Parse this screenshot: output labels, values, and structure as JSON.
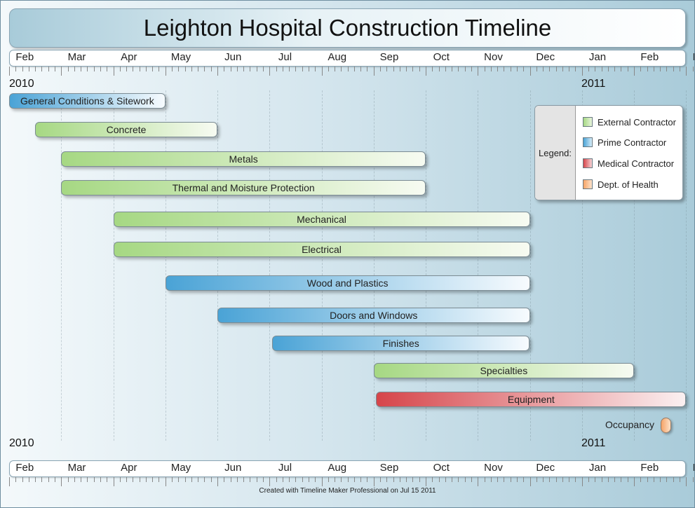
{
  "title": "Leighton Hospital Construction Timeline",
  "months": [
    "Feb",
    "Mar",
    "Apr",
    "May",
    "Jun",
    "Jul",
    "Aug",
    "Sep",
    "Oct",
    "Nov",
    "Dec",
    "Jan",
    "Feb",
    "Mar"
  ],
  "years": {
    "start": "2010",
    "next": "2011"
  },
  "legend": {
    "title": "Legend:",
    "items": [
      {
        "label": "External Contractor",
        "color": "#a6d883"
      },
      {
        "label": "Prime Contractor",
        "color": "#4aa3d6"
      },
      {
        "label": "Medical Contractor",
        "color": "#d6454a"
      },
      {
        "label": "Dept. of Health",
        "color": "#f6a466"
      }
    ]
  },
  "chart_data": {
    "type": "gantt",
    "title": "Leighton Hospital Construction Timeline",
    "x_axis": "month (fractional month index from start of Feb 2010)",
    "xlim": [
      0,
      13.7
    ],
    "tasks": [
      {
        "name": "General Conditions & Sitework",
        "start": 0.0,
        "end": 3.0,
        "category": "Prime Contractor"
      },
      {
        "name": "Concrete",
        "start": 0.5,
        "end": 4.0,
        "category": "External Contractor"
      },
      {
        "name": "Metals",
        "start": 1.0,
        "end": 8.0,
        "category": "External Contractor"
      },
      {
        "name": "Thermal and Moisture Protection",
        "start": 1.0,
        "end": 8.0,
        "category": "External Contractor"
      },
      {
        "name": "Mechanical",
        "start": 2.0,
        "end": 10.0,
        "category": "External Contractor"
      },
      {
        "name": "Electrical",
        "start": 2.0,
        "end": 10.0,
        "category": "External Contractor"
      },
      {
        "name": "Wood and Plastics",
        "start": 3.0,
        "end": 10.0,
        "category": "Prime Contractor"
      },
      {
        "name": "Doors and Windows",
        "start": 4.0,
        "end": 10.0,
        "category": "Prime Contractor"
      },
      {
        "name": "Finishes",
        "start": 5.05,
        "end": 10.0,
        "category": "Prime Contractor"
      },
      {
        "name": "Specialties",
        "start": 7.0,
        "end": 12.0,
        "category": "External Contractor"
      },
      {
        "name": "Equipment",
        "start": 7.05,
        "end": 13.0,
        "category": "Medical Contractor"
      }
    ],
    "milestones": [
      {
        "name": "Occupancy",
        "date": 12.85,
        "category": "Dept. of Health"
      }
    ]
  },
  "footer": "Created with Timeline Maker Professional on Jul 15 2011"
}
